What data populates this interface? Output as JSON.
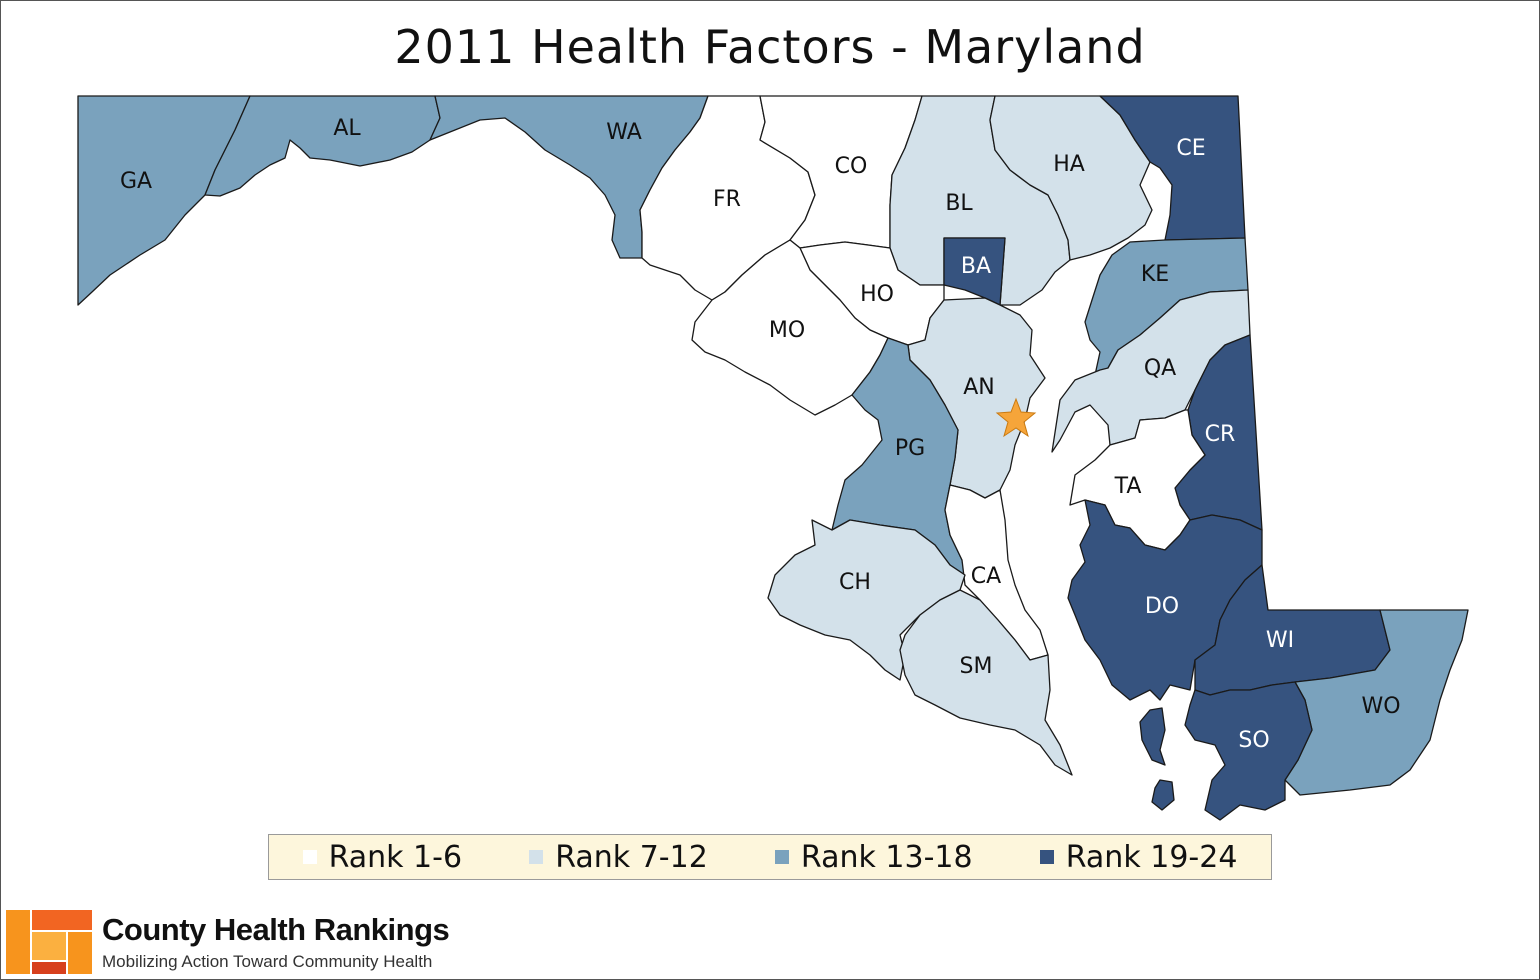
{
  "title": "2011 Health Factors - Maryland",
  "colors": {
    "rank_1_6": "#ffffff",
    "rank_7_12": "#d3e1ea",
    "rank_13_18": "#7aa2bd",
    "rank_19_24": "#36537f",
    "capital_star": "#f6a53a"
  },
  "legend": [
    {
      "label": "Rank 1-6",
      "color": "#ffffff"
    },
    {
      "label": "Rank 7-12",
      "color": "#d3e1ea"
    },
    {
      "label": "Rank 13-18",
      "color": "#7aa2bd"
    },
    {
      "label": "Rank 19-24",
      "color": "#36537f"
    }
  ],
  "counties": {
    "GA": {
      "label": "GA",
      "rank_group": "13-18"
    },
    "AL": {
      "label": "AL",
      "rank_group": "13-18"
    },
    "WA": {
      "label": "WA",
      "rank_group": "13-18"
    },
    "FR": {
      "label": "FR",
      "rank_group": "1-6"
    },
    "CO": {
      "label": "CO",
      "rank_group": "1-6"
    },
    "BL": {
      "label": "BL",
      "rank_group": "7-12"
    },
    "HA": {
      "label": "HA",
      "rank_group": "7-12"
    },
    "CE": {
      "label": "CE",
      "rank_group": "19-24"
    },
    "BA": {
      "label": "BA",
      "rank_group": "19-24"
    },
    "HO": {
      "label": "HO",
      "rank_group": "1-6"
    },
    "KE": {
      "label": "KE",
      "rank_group": "13-18"
    },
    "MO": {
      "label": "MO",
      "rank_group": "1-6"
    },
    "AN": {
      "label": "AN",
      "rank_group": "7-12"
    },
    "QA": {
      "label": "QA",
      "rank_group": "7-12"
    },
    "PG": {
      "label": "PG",
      "rank_group": "13-18"
    },
    "CR": {
      "label": "CR",
      "rank_group": "19-24"
    },
    "TA": {
      "label": "TA",
      "rank_group": "1-6"
    },
    "CA": {
      "label": "CA",
      "rank_group": "1-6"
    },
    "CH": {
      "label": "CH",
      "rank_group": "7-12"
    },
    "DO": {
      "label": "DO",
      "rank_group": "19-24"
    },
    "WI": {
      "label": "WI",
      "rank_group": "19-24"
    },
    "SM": {
      "label": "SM",
      "rank_group": "7-12"
    },
    "WO": {
      "label": "WO",
      "rank_group": "13-18"
    },
    "SO": {
      "label": "SO",
      "rank_group": "19-24"
    }
  },
  "capital_icon": "star-icon",
  "brand": {
    "name": "County Health Rankings",
    "tagline": "Mobilizing Action Toward Community Health",
    "logo_colors": [
      "#f7941d",
      "#f26522",
      "#d7401d",
      "#fbb040"
    ]
  }
}
